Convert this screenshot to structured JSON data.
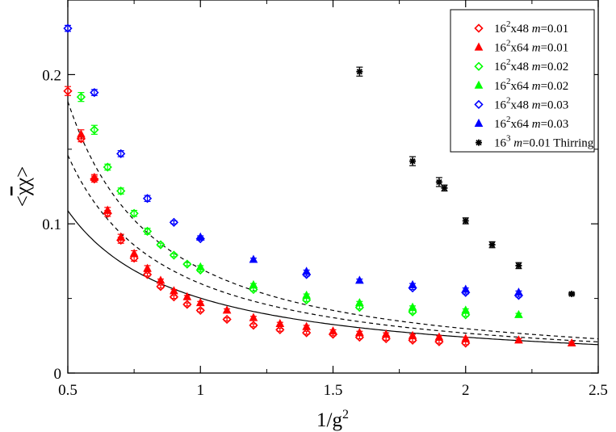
{
  "chart_data": {
    "type": "scatter",
    "xlabel": "1/g²",
    "ylabel": "<χ̄χ>",
    "xlim": [
      0.5,
      2.5
    ],
    "ylim": [
      0,
      0.25
    ],
    "x_ticks": [
      0.5,
      1,
      1.5,
      2,
      2.5
    ],
    "x_tick_labels": [
      "0.5",
      "1",
      "1.5",
      "2",
      "2.5"
    ],
    "y_ticks": [
      0,
      0.1,
      0.2
    ],
    "y_tick_labels": [
      "0",
      "0.1",
      "0.2"
    ],
    "grid": false,
    "legend_position": "top-right",
    "series": [
      {
        "name": "16²x48 m=0.01",
        "legend_main": "16",
        "legend_sup": "2",
        "legend_rest": "x48 ",
        "legend_m": "m",
        "legend_val": "=0.01",
        "color": "#ff0000",
        "marker": "diamond-open",
        "x": [
          0.5,
          0.55,
          0.6,
          0.65,
          0.7,
          0.75,
          0.8,
          0.85,
          0.9,
          0.95,
          1.0,
          1.1,
          1.2,
          1.3,
          1.4,
          1.5,
          1.6,
          1.7,
          1.8,
          1.9,
          2.0
        ],
        "y": [
          0.189,
          0.157,
          0.13,
          0.107,
          0.089,
          0.077,
          0.066,
          0.058,
          0.051,
          0.046,
          0.042,
          0.036,
          0.032,
          0.029,
          0.027,
          0.026,
          0.024,
          0.023,
          0.022,
          0.021,
          0.02
        ],
        "err": [
          0.003,
          0.002,
          0.002,
          0.002,
          0.002,
          0.002,
          0.001,
          0.001,
          0.001,
          0.001,
          0.001,
          0.001,
          0.001,
          0.001,
          0.001,
          0.001,
          0.001,
          0.001,
          0.001,
          0.001,
          0.001
        ]
      },
      {
        "name": "16²x64 m=0.01",
        "legend_main": "16",
        "legend_sup": "2",
        "legend_rest": "x64 ",
        "legend_m": "m",
        "legend_val": "=0.01",
        "color": "#ff0000",
        "marker": "triangle-filled",
        "x": [
          0.55,
          0.6,
          0.65,
          0.7,
          0.75,
          0.8,
          0.85,
          0.9,
          0.95,
          1.0,
          1.1,
          1.2,
          1.3,
          1.4,
          1.5,
          1.6,
          1.7,
          1.8,
          1.9,
          2.0,
          2.2,
          2.4
        ],
        "y": [
          0.16,
          0.131,
          0.109,
          0.091,
          0.08,
          0.07,
          0.062,
          0.055,
          0.051,
          0.047,
          0.042,
          0.037,
          0.033,
          0.031,
          0.028,
          0.027,
          0.026,
          0.025,
          0.024,
          0.023,
          0.022,
          0.02
        ],
        "err": [
          0.003,
          0.002,
          0.002,
          0.002,
          0.002,
          0.002,
          0.001,
          0.001,
          0.001,
          0.001,
          0.001,
          0.001,
          0.001,
          0.001,
          0.001,
          0.001,
          0.001,
          0.001,
          0.001,
          0.001,
          0.001,
          0.001
        ]
      },
      {
        "name": "16²x48 m=0.02",
        "legend_main": "16",
        "legend_sup": "2",
        "legend_rest": "x48 ",
        "legend_m": "m",
        "legend_val": "=0.02",
        "color": "#00ff00",
        "marker": "diamond-open",
        "x": [
          0.55,
          0.6,
          0.65,
          0.7,
          0.75,
          0.8,
          0.85,
          0.9,
          0.95,
          1.0,
          1.2,
          1.4,
          1.6,
          1.8,
          2.0
        ],
        "y": [
          0.185,
          0.163,
          0.138,
          0.122,
          0.107,
          0.095,
          0.086,
          0.079,
          0.073,
          0.069,
          0.056,
          0.049,
          0.044,
          0.041,
          0.039
        ],
        "err": [
          0.003,
          0.003,
          0.002,
          0.002,
          0.002,
          0.002,
          0.001,
          0.001,
          0.001,
          0.001,
          0.001,
          0.001,
          0.001,
          0.001,
          0.001
        ]
      },
      {
        "name": "16²x64 m=0.02",
        "legend_main": "16",
        "legend_sup": "2",
        "legend_rest": "x64 ",
        "legend_m": "m",
        "legend_val": "=0.02",
        "color": "#00ff00",
        "marker": "triangle-filled",
        "x": [
          1.0,
          1.2,
          1.4,
          1.6,
          1.8,
          2.0,
          2.2
        ],
        "y": [
          0.071,
          0.059,
          0.052,
          0.047,
          0.044,
          0.042,
          0.039
        ],
        "err": [
          0.001,
          0.001,
          0.001,
          0.001,
          0.001,
          0.001,
          0.001
        ]
      },
      {
        "name": "16²x48 m=0.03",
        "legend_main": "16",
        "legend_sup": "2",
        "legend_rest": "x48 ",
        "legend_m": "m",
        "legend_val": "=0.03",
        "color": "#0000ff",
        "marker": "diamond-open",
        "x": [
          0.5,
          0.6,
          0.7,
          0.8,
          0.9,
          1.0,
          1.4,
          1.8,
          2.0,
          2.2
        ],
        "y": [
          0.231,
          0.188,
          0.147,
          0.117,
          0.101,
          0.09,
          0.066,
          0.057,
          0.054,
          0.052
        ],
        "err": [
          0.002,
          0.002,
          0.002,
          0.002,
          0.001,
          0.001,
          0.001,
          0.001,
          0.001,
          0.001
        ]
      },
      {
        "name": "16²x64 m=0.03",
        "legend_main": "16",
        "legend_sup": "2",
        "legend_rest": "x64 ",
        "legend_m": "m",
        "legend_val": "=0.03",
        "color": "#0000ff",
        "marker": "triangle-filled",
        "x": [
          1.0,
          1.2,
          1.4,
          1.6,
          1.8,
          2.0,
          2.2
        ],
        "y": [
          0.091,
          0.076,
          0.068,
          0.062,
          0.059,
          0.056,
          0.054
        ],
        "err": [
          0.001,
          0.001,
          0.001,
          0.001,
          0.001,
          0.001,
          0.001
        ]
      },
      {
        "name": "16³ m=0.01 Thirring",
        "legend_main": "16",
        "legend_sup": "3",
        "legend_rest": " ",
        "legend_m": "m",
        "legend_val": "=0.01 Thirring",
        "color": "#000000",
        "marker": "star",
        "x": [
          1.6,
          1.8,
          1.9,
          1.92,
          2.0,
          2.1,
          2.2,
          2.4
        ],
        "y": [
          0.202,
          0.142,
          0.128,
          0.124,
          0.102,
          0.086,
          0.072,
          0.053
        ],
        "err": [
          0.003,
          0.003,
          0.003,
          0.002,
          0.002,
          0.002,
          0.002,
          0.001
        ]
      }
    ],
    "fit_curves": [
      {
        "style": "solid",
        "color": "#000000",
        "a": 0.0042,
        "b": 0.046
      },
      {
        "style": "dashed",
        "color": "#000000",
        "a": 0.013,
        "b": 0.047
      },
      {
        "style": "dashed",
        "color": "#000000",
        "a": 0.021,
        "b": 0.049
      }
    ]
  }
}
